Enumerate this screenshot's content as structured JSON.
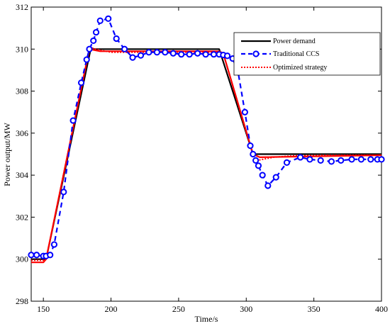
{
  "chart_data": {
    "type": "line",
    "xlabel": "Time/s",
    "ylabel": "Power output/MW",
    "xlim": [
      141,
      400
    ],
    "ylim": [
      298,
      312
    ],
    "xticks": [
      150,
      200,
      250,
      300,
      350,
      400
    ],
    "yticks": [
      298,
      300,
      302,
      304,
      306,
      308,
      310,
      312
    ],
    "grid": false,
    "legend_position": "top-right",
    "series": [
      {
        "name": "Power demand",
        "style": "solid",
        "color": "#000000",
        "x": [
          141,
          152,
          185,
          280,
          305,
          400
        ],
        "y": [
          300.0,
          300.0,
          310.0,
          310.0,
          305.0,
          305.0
        ]
      },
      {
        "name": "Traditional CCS",
        "style": "dashed-circle",
        "color": "#0000ff",
        "x": [
          141,
          145,
          150,
          152,
          155,
          158,
          165,
          172,
          178,
          182,
          184,
          187,
          189,
          192,
          198,
          204,
          210,
          216,
          222,
          228,
          234,
          240,
          246,
          252,
          258,
          264,
          270,
          276,
          280,
          283,
          286,
          290,
          294,
          299,
          303,
          305,
          307,
          309,
          312,
          316,
          322,
          330,
          340,
          347,
          355,
          363,
          370,
          378,
          385,
          392,
          397,
          400
        ],
        "y": [
          300.2,
          300.2,
          300.15,
          300.15,
          300.2,
          300.7,
          303.2,
          306.6,
          308.4,
          309.5,
          310.0,
          310.4,
          310.8,
          311.35,
          311.45,
          310.5,
          310.0,
          309.6,
          309.7,
          309.85,
          309.85,
          309.85,
          309.8,
          309.75,
          309.75,
          309.8,
          309.75,
          309.75,
          309.75,
          309.72,
          309.68,
          309.55,
          308.9,
          307.0,
          305.4,
          305.0,
          304.7,
          304.45,
          304.0,
          303.5,
          303.9,
          304.6,
          304.85,
          304.75,
          304.7,
          304.65,
          304.7,
          304.75,
          304.75,
          304.75,
          304.75,
          304.75
        ]
      },
      {
        "name": "Optimized strategy",
        "style": "dotted",
        "color": "#ff0000",
        "x": [
          141,
          150,
          152,
          184,
          186,
          192,
          200,
          210,
          230,
          260,
          280,
          283,
          305,
          308,
          312,
          320,
          335,
          360,
          400
        ],
        "y": [
          299.95,
          299.95,
          300.0,
          310.0,
          310.05,
          309.95,
          309.85,
          309.85,
          309.85,
          309.85,
          309.85,
          309.8,
          304.95,
          304.7,
          304.75,
          304.85,
          304.92,
          304.95,
          304.95
        ]
      },
      {
        "name": "",
        "style": "solid",
        "color": "#ff0000",
        "x": [
          141,
          150,
          152,
          184,
          192,
          280,
          283,
          305,
          310,
          400
        ],
        "y": [
          299.85,
          299.85,
          300.0,
          310.0,
          309.9,
          309.9,
          309.8,
          305.0,
          304.85,
          304.95
        ]
      }
    ]
  }
}
